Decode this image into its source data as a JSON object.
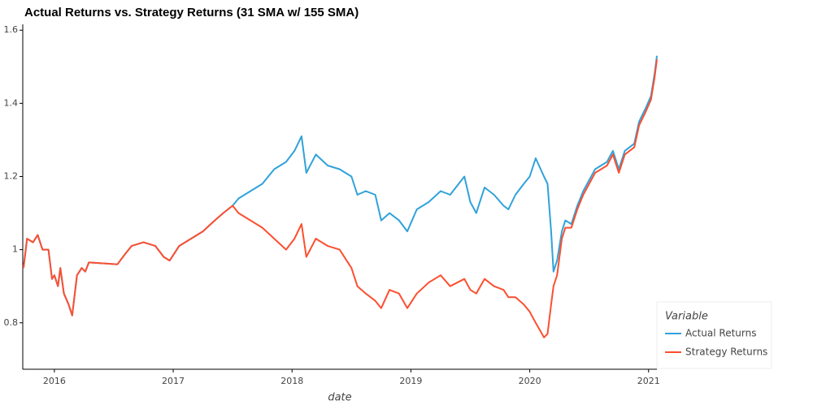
{
  "chart_data": {
    "type": "line",
    "title": "Actual Returns vs. Strategy Returns (31 SMA w/ 155 SMA)",
    "x_label": "date",
    "legend_title": "Variable",
    "legend": "bottom-right",
    "grid": false,
    "xlim": [
      2015.734,
      2021.07
    ],
    "xticks": [
      2016,
      2017,
      2018,
      2019,
      2020,
      2021
    ],
    "ylim": [
      0.673,
      1.616
    ],
    "yticks": [
      0.8,
      1,
      1.2,
      1.4,
      1.6
    ],
    "x": [
      2015.74,
      2015.77,
      2015.82,
      2015.86,
      2015.9,
      2015.95,
      2015.98,
      2016.0,
      2016.03,
      2016.05,
      2016.08,
      2016.12,
      2016.15,
      2016.19,
      2016.23,
      2016.26,
      2016.29,
      2016.53,
      2016.6,
      2016.65,
      2016.75,
      2016.85,
      2016.92,
      2016.97,
      2017.05,
      2017.15,
      2017.25,
      2017.35,
      2017.42,
      2017.5,
      2017.55,
      2017.65,
      2017.75,
      2017.85,
      2017.95,
      2018.02,
      2018.08,
      2018.12,
      2018.2,
      2018.3,
      2018.4,
      2018.5,
      2018.55,
      2018.62,
      2018.7,
      2018.75,
      2018.82,
      2018.9,
      2018.97,
      2019.05,
      2019.15,
      2019.25,
      2019.33,
      2019.45,
      2019.5,
      2019.55,
      2019.62,
      2019.7,
      2019.78,
      2019.82,
      2019.88,
      2019.95,
      2020.0,
      2020.05,
      2020.12,
      2020.15,
      2020.18,
      2020.2,
      2020.23,
      2020.27,
      2020.3,
      2020.35,
      2020.4,
      2020.45,
      2020.55,
      2020.65,
      2020.7,
      2020.75,
      2020.8,
      2020.88,
      2020.92,
      2020.98,
      2021.02,
      2021.05,
      2021.07
    ],
    "series": [
      {
        "name": "Actual Returns",
        "color": "#30a2da",
        "values": [
          0.95,
          1.03,
          1.02,
          1.04,
          1.0,
          1.0,
          0.92,
          0.93,
          0.9,
          0.95,
          0.88,
          0.85,
          0.82,
          0.93,
          0.95,
          0.94,
          0.965,
          0.96,
          0.99,
          1.01,
          1.02,
          1.01,
          0.98,
          0.97,
          1.01,
          1.03,
          1.05,
          1.08,
          1.1,
          1.12,
          1.14,
          1.16,
          1.18,
          1.22,
          1.24,
          1.27,
          1.31,
          1.21,
          1.26,
          1.23,
          1.22,
          1.2,
          1.15,
          1.16,
          1.15,
          1.08,
          1.1,
          1.08,
          1.05,
          1.11,
          1.13,
          1.16,
          1.15,
          1.2,
          1.13,
          1.1,
          1.17,
          1.15,
          1.12,
          1.11,
          1.15,
          1.18,
          1.2,
          1.25,
          1.2,
          1.18,
          1.05,
          0.94,
          0.97,
          1.05,
          1.08,
          1.07,
          1.12,
          1.16,
          1.22,
          1.24,
          1.27,
          1.22,
          1.27,
          1.29,
          1.35,
          1.39,
          1.42,
          1.48,
          1.53
        ]
      },
      {
        "name": "Strategy Returns",
        "color": "#fc4f30",
        "values": [
          0.95,
          1.03,
          1.02,
          1.04,
          1.0,
          1.0,
          0.92,
          0.93,
          0.9,
          0.95,
          0.88,
          0.85,
          0.82,
          0.93,
          0.95,
          0.94,
          0.965,
          0.96,
          0.99,
          1.01,
          1.02,
          1.01,
          0.98,
          0.97,
          1.01,
          1.03,
          1.05,
          1.08,
          1.1,
          1.12,
          1.1,
          1.08,
          1.06,
          1.03,
          1.0,
          1.03,
          1.07,
          0.98,
          1.03,
          1.01,
          1.0,
          0.95,
          0.9,
          0.88,
          0.86,
          0.84,
          0.89,
          0.88,
          0.84,
          0.88,
          0.91,
          0.93,
          0.9,
          0.92,
          0.89,
          0.88,
          0.92,
          0.9,
          0.89,
          0.87,
          0.87,
          0.85,
          0.83,
          0.8,
          0.76,
          0.77,
          0.85,
          0.9,
          0.93,
          1.03,
          1.06,
          1.06,
          1.11,
          1.15,
          1.21,
          1.23,
          1.26,
          1.21,
          1.26,
          1.28,
          1.34,
          1.38,
          1.41,
          1.47,
          1.52
        ]
      }
    ]
  }
}
